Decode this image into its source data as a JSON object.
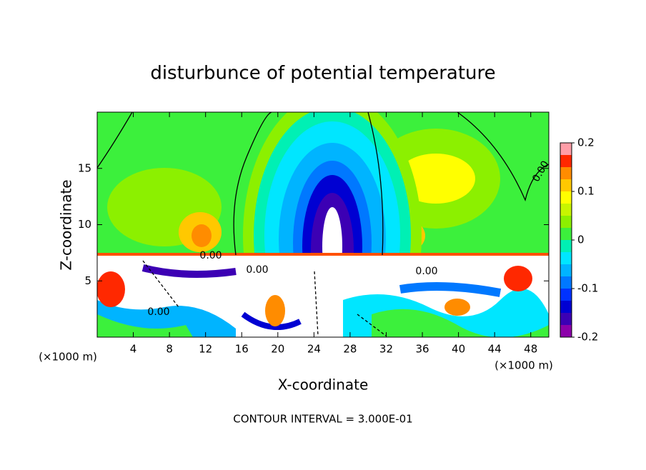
{
  "chart_data": {
    "type": "heatmap",
    "title": "disturbunce of potential temperature",
    "x_label": "X-coordinate",
    "y_label": "Z-coordinate",
    "x_unit_labels": [
      "(×1000 m)",
      "(×1000 m)"
    ],
    "footnote": "CONTOUR INTERVAL = 3.000E-01",
    "contour_labels": [
      "0.00",
      "0.00",
      "0.00",
      "0.00",
      "0.00"
    ],
    "xlim": [
      0,
      50
    ],
    "xticks": [
      4,
      8,
      12,
      16,
      20,
      24,
      28,
      32,
      36,
      40,
      44,
      48
    ],
    "ylim": [
      0,
      20
    ],
    "yticks": [
      5,
      10,
      15
    ],
    "clim": [
      -0.2,
      0.2
    ],
    "cticks": [
      -0.2,
      -0.1,
      0,
      0.1,
      0.2
    ],
    "colors": [
      "#8c00aa",
      "#3c00b4",
      "#0000d2",
      "#0032ff",
      "#0078ff",
      "#00b4ff",
      "#00e6ff",
      "#00f0b4",
      "#3cf03c",
      "#8cf000",
      "#c8f500",
      "#ffff00",
      "#ffc800",
      "#ff8c00",
      "#ff2800",
      "#ff9ea8"
    ]
  }
}
